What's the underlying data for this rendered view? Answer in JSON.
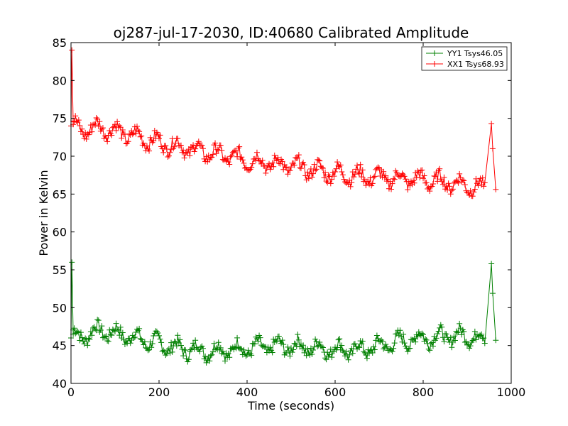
{
  "chart_data": {
    "type": "line",
    "title": "oj287-jul-17-2030, ID:40680 Calibrated Amplitude",
    "xlabel": "Time (seconds)",
    "ylabel": "Power in Kelvin",
    "xlim": [
      0,
      1000
    ],
    "ylim": [
      40,
      85
    ],
    "xticks": [
      "0",
      "200",
      "400",
      "600",
      "800",
      "1000"
    ],
    "yticks": [
      "40",
      "45",
      "50",
      "55",
      "60",
      "65",
      "70",
      "75",
      "80",
      "85"
    ],
    "legend_position": "top-right",
    "grid": false,
    "marker": "+",
    "series": [
      {
        "name": "YY1 Tsys46.05",
        "color": "#008000",
        "x": [
          0,
          2,
          5,
          20,
          40,
          70,
          100,
          130,
          160,
          200,
          250,
          300,
          350,
          400,
          450,
          500,
          550,
          600,
          650,
          700,
          750,
          800,
          850,
          900,
          940,
          955,
          958,
          965
        ],
        "y": [
          46.0,
          56.0,
          46.5,
          46.0,
          46.6,
          47.0,
          46.6,
          46.3,
          45.8,
          45.2,
          44.6,
          44.3,
          44.4,
          44.6,
          44.9,
          44.9,
          44.7,
          44.5,
          44.4,
          44.9,
          45.6,
          46.0,
          46.2,
          46.3,
          45.9,
          55.8,
          51.9,
          45.7
        ]
      },
      {
        "name": "XX1 Tsys68.93",
        "color": "#ff0000",
        "x": [
          0,
          2,
          5,
          20,
          40,
          70,
          100,
          130,
          160,
          200,
          250,
          300,
          350,
          400,
          450,
          500,
          550,
          600,
          650,
          700,
          750,
          800,
          850,
          900,
          940,
          955,
          958,
          965
        ],
        "y": [
          74.0,
          84.0,
          74.2,
          73.4,
          73.6,
          73.8,
          73.3,
          72.9,
          72.4,
          71.8,
          71.2,
          70.6,
          70.1,
          69.5,
          69.1,
          68.7,
          68.2,
          67.8,
          67.4,
          67.2,
          67.0,
          66.9,
          66.6,
          66.2,
          65.7,
          74.3,
          71.0,
          65.6
        ]
      }
    ]
  }
}
